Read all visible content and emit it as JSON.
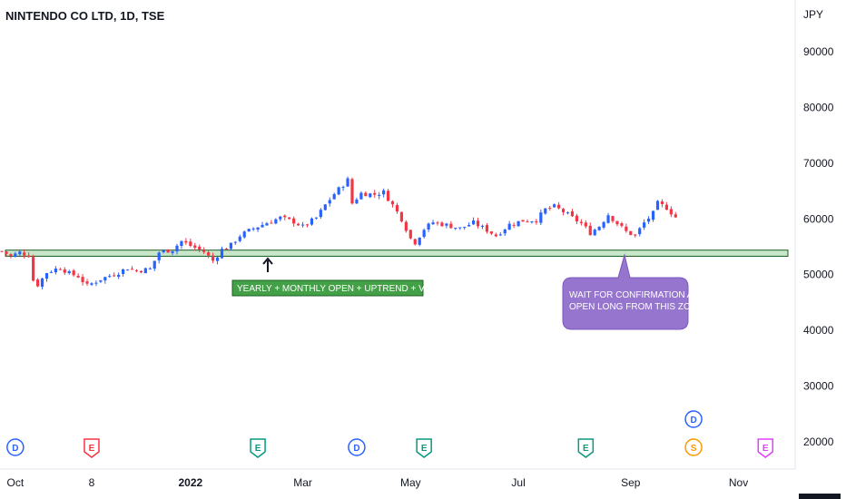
{
  "chart_data": {
    "type": "candlestick",
    "title": "NINTENDO CO LTD, 1D, TSE",
    "currency": "JPY",
    "y_ticks": [
      20000,
      30000,
      40000,
      50000,
      60000,
      70000,
      80000,
      90000
    ],
    "ylim": [
      16000,
      96000
    ],
    "x_ticks": [
      {
        "label": "Oct",
        "idx": 3
      },
      {
        "label": "8",
        "idx": 20
      },
      {
        "label": "2022",
        "idx": 42
      },
      {
        "label": "Mar",
        "idx": 67
      },
      {
        "label": "May",
        "idx": 91
      },
      {
        "label": "Jul",
        "idx": 115
      },
      {
        "label": "Sep",
        "idx": 140
      },
      {
        "label": "Nov",
        "idx": 164
      }
    ],
    "x_count": 175,
    "price_path": [
      [
        0,
        54200
      ],
      [
        2,
        53300
      ],
      [
        4,
        54000
      ],
      [
        6,
        53500
      ],
      [
        7,
        49000
      ],
      [
        8,
        48200
      ],
      [
        10,
        50400
      ],
      [
        13,
        51300
      ],
      [
        15,
        50200
      ],
      [
        17,
        49700
      ],
      [
        19,
        48000
      ],
      [
        22,
        49200
      ],
      [
        26,
        50400
      ],
      [
        28,
        51200
      ],
      [
        30,
        50700
      ],
      [
        33,
        51000
      ],
      [
        35,
        54000
      ],
      [
        38,
        54500
      ],
      [
        40,
        56000
      ],
      [
        42,
        55200
      ],
      [
        45,
        54100
      ],
      [
        47,
        52500
      ],
      [
        49,
        54500
      ],
      [
        51,
        55300
      ],
      [
        53,
        57000
      ],
      [
        56,
        58300
      ],
      [
        59,
        59300
      ],
      [
        62,
        60200
      ],
      [
        65,
        59500
      ],
      [
        67,
        58600
      ],
      [
        70,
        60200
      ],
      [
        72,
        62500
      ],
      [
        74,
        64500
      ],
      [
        77,
        67000
      ],
      [
        78,
        62800
      ],
      [
        80,
        64600
      ],
      [
        83,
        64400
      ],
      [
        85,
        64800
      ],
      [
        87,
        62500
      ],
      [
        89,
        60000
      ],
      [
        91,
        56500
      ],
      [
        92,
        55800
      ],
      [
        94,
        58200
      ],
      [
        96,
        59400
      ],
      [
        99,
        58900
      ],
      [
        102,
        58300
      ],
      [
        105,
        59300
      ],
      [
        108,
        58000
      ],
      [
        110,
        57000
      ],
      [
        113,
        59000
      ],
      [
        116,
        59700
      ],
      [
        119,
        59800
      ],
      [
        121,
        61700
      ],
      [
        123,
        62200
      ],
      [
        125,
        61300
      ],
      [
        127,
        60200
      ],
      [
        129,
        59200
      ],
      [
        131,
        57500
      ],
      [
        133,
        58700
      ],
      [
        135,
        60800
      ],
      [
        137,
        59200
      ],
      [
        139,
        57700
      ],
      [
        141,
        57000
      ],
      [
        143,
        59300
      ],
      [
        145,
        61000
      ],
      [
        146,
        62800
      ],
      [
        148,
        62000
      ],
      [
        150,
        60300
      ]
    ],
    "annotations": {
      "zone_label": "YEARLY + MONTHLY OPEN + UPTREND + VOLUME",
      "callout": [
        "WAIT FOR CONFIRMATION AND",
        "OPEN LONG FROM THIS ZONE"
      ],
      "support_zone": [
        53300,
        54400
      ]
    },
    "event_markers": [
      {
        "label": "D",
        "idx": 3,
        "shape": "circle",
        "color": "#2962ff",
        "row": 0
      },
      {
        "label": "E",
        "idx": 20,
        "shape": "pentagon",
        "color": "#f23645",
        "row": 0
      },
      {
        "label": "E",
        "idx": 57,
        "shape": "pentagon",
        "color": "#089981",
        "row": 0
      },
      {
        "label": "D",
        "idx": 79,
        "shape": "circle",
        "color": "#2962ff",
        "row": 0
      },
      {
        "label": "E",
        "idx": 94,
        "shape": "pentagon",
        "color": "#089981",
        "row": 0
      },
      {
        "label": "E",
        "idx": 130,
        "shape": "pentagon",
        "color": "#089981",
        "row": 0
      },
      {
        "label": "D",
        "idx": 154,
        "shape": "circle",
        "color": "#2962ff",
        "row": 1
      },
      {
        "label": "S",
        "idx": 154,
        "shape": "circle",
        "color": "#ff9800",
        "row": 0
      },
      {
        "label": "E",
        "idx": 170,
        "shape": "pentagon",
        "color": "#e040fb",
        "row": 0
      }
    ],
    "colors": {
      "up": "#2962ff",
      "down": "#f23645",
      "zone_fill": "#c8e6c9",
      "zone_stroke": "#1b5e20",
      "callout_fill": "#9575cd"
    }
  }
}
